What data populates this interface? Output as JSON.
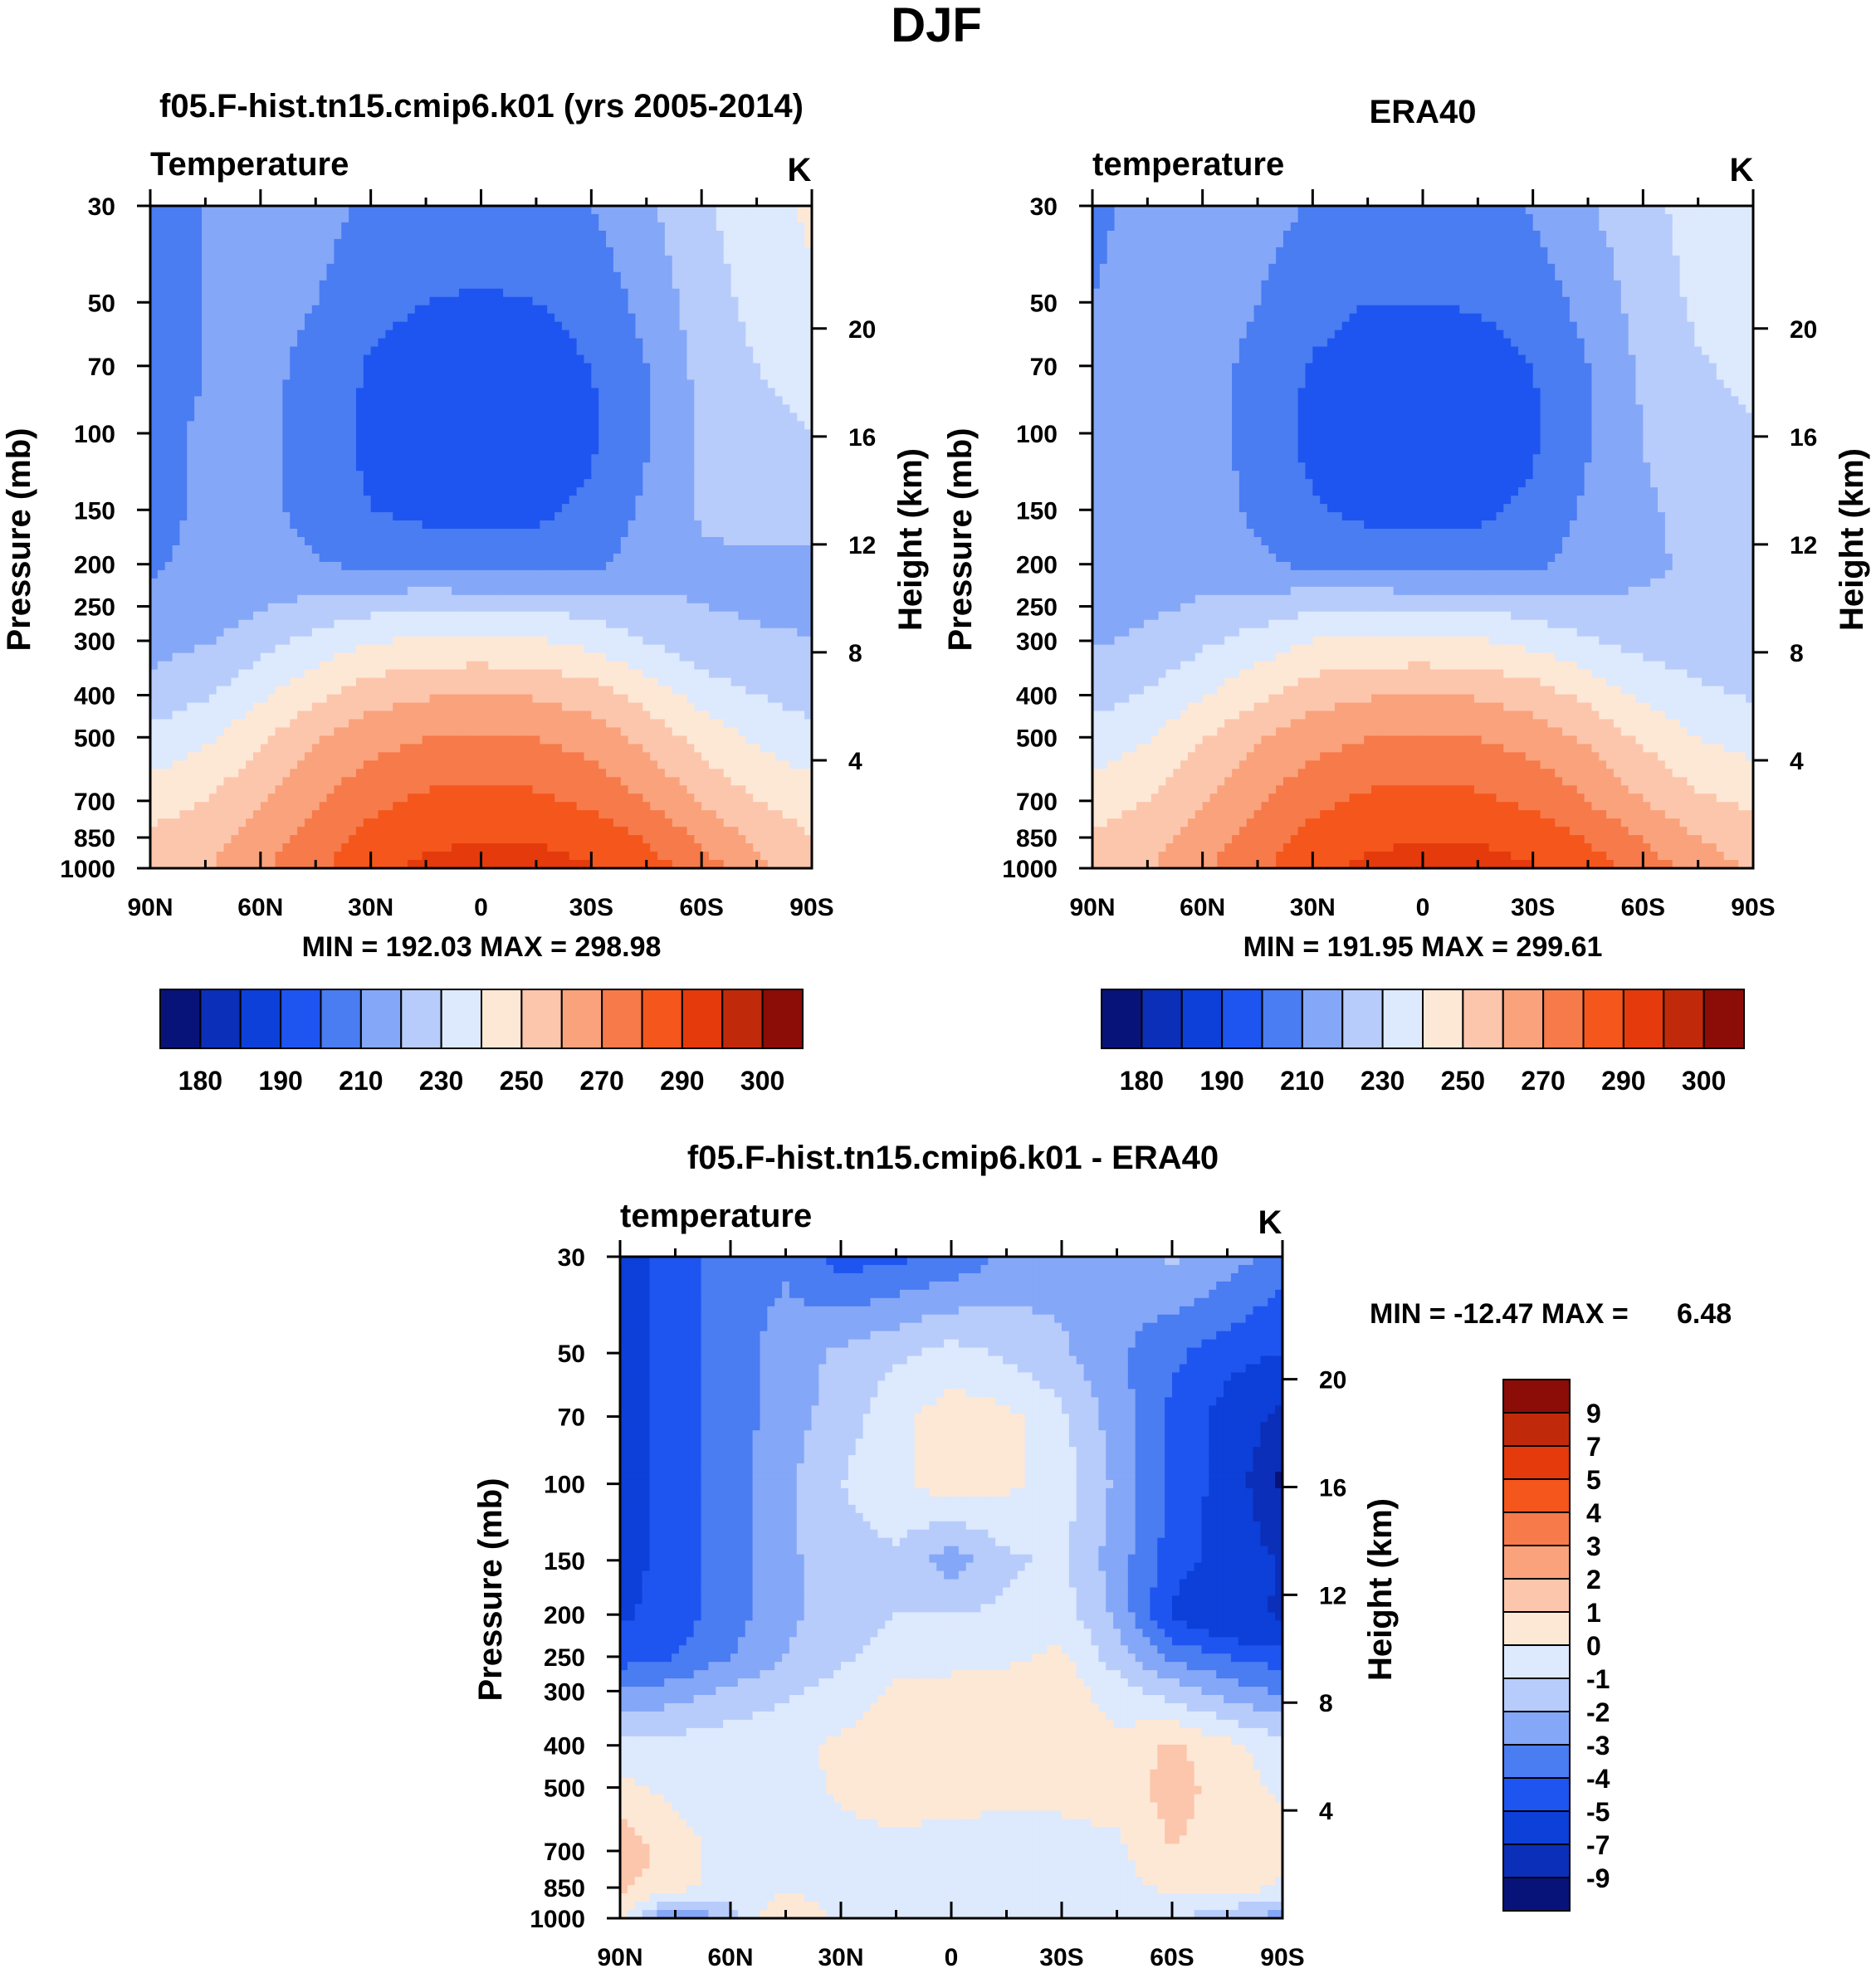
{
  "page": {
    "title": "DJF"
  },
  "colors": {
    "abs_fills": [
      "#08137a",
      "#0b2fb8",
      "#0d3fd9",
      "#1e55f0",
      "#4a7cf2",
      "#85a7f7",
      "#b7ccfb",
      "#dde9fd",
      "#fde8d6",
      "#fcc6ac",
      "#f9a27c",
      "#f67a4a",
      "#f4561c",
      "#e43a0c",
      "#c02a0a",
      "#8c0c08"
    ],
    "diff_fills": [
      "#08137a",
      "#0b2fb8",
      "#0d3fd9",
      "#1e55f0",
      "#4a7cf2",
      "#85a7f7",
      "#b7ccfb",
      "#dde9fd",
      "#fde8d6",
      "#fcc6ac",
      "#f9a27c",
      "#f67a4a",
      "#f4561c",
      "#e43a0c",
      "#c02a0a",
      "#8c0c08"
    ]
  },
  "chart_data": [
    {
      "id": "model",
      "type": "heatmap",
      "title": "f05.F-hist.tn15.cmip6.k01 (yrs 2005-2014)",
      "left_label": "Temperature",
      "unit": "K",
      "ylabel": "Pressure (mb)",
      "ylabel_right": "Height (km)",
      "x_ticks": [
        "90N",
        "60N",
        "30N",
        "0",
        "30S",
        "60S",
        "90S"
      ],
      "y_ticks": [
        "30",
        "50",
        "70",
        "100",
        "150",
        "200",
        "250",
        "300",
        "400",
        "500",
        "700",
        "850",
        "1000"
      ],
      "right_ticks": [
        "20",
        "16",
        "12",
        "8",
        "4"
      ],
      "stats": "MIN = 192.03  MAX = 298.98",
      "colorbar_labels": [
        "180",
        "190",
        "210",
        "230",
        "250",
        "270",
        "290",
        "300"
      ],
      "levels": [
        180,
        185,
        190,
        200,
        210,
        220,
        230,
        240,
        250,
        260,
        270,
        280,
        290,
        295,
        300
      ],
      "grid": {
        "lat": [
          90,
          75,
          60,
          45,
          30,
          15,
          0,
          -15,
          -30,
          -45,
          -60,
          -75,
          -90
        ],
        "lev": [
          30,
          50,
          70,
          100,
          150,
          200,
          250,
          300,
          400,
          500,
          700,
          850,
          1000
        ],
        "T": [
          [
            202,
            210,
            215,
            214,
            208,
            205,
            205,
            206,
            210,
            218,
            228,
            236,
            242
          ],
          [
            204,
            210,
            214,
            210,
            203,
            200,
            199,
            200,
            204,
            213,
            225,
            233,
            238
          ],
          [
            206,
            210,
            213,
            207,
            199,
            195,
            194,
            195,
            200,
            210,
            223,
            230,
            234
          ],
          [
            208,
            211,
            212,
            206,
            197,
            194,
            193,
            194,
            198,
            209,
            221,
            227,
            230
          ],
          [
            208,
            211,
            212,
            207,
            200,
            198,
            197,
            198,
            202,
            212,
            221,
            222,
            222
          ],
          [
            209,
            212,
            214,
            211,
            207,
            205,
            204,
            205,
            208,
            214,
            219,
            219,
            219
          ],
          [
            212,
            215,
            219,
            223,
            227,
            229,
            229,
            228,
            226,
            222,
            220,
            219,
            219
          ],
          [
            216,
            219,
            226,
            233,
            239,
            242,
            242,
            241,
            237,
            230,
            223,
            221,
            220
          ],
          [
            224,
            229,
            238,
            248,
            256,
            259,
            260,
            259,
            255,
            246,
            236,
            230,
            226
          ],
          [
            233,
            238,
            248,
            259,
            266,
            270,
            271,
            270,
            266,
            257,
            246,
            238,
            233
          ],
          [
            245,
            250,
            259,
            269,
            277,
            282,
            283,
            282,
            278,
            270,
            259,
            250,
            245
          ],
          [
            252,
            256,
            265,
            275,
            283,
            288,
            289,
            289,
            286,
            279,
            268,
            258,
            250
          ],
          [
            255,
            259,
            268,
            278,
            287,
            292,
            294,
            294,
            291,
            285,
            275,
            263,
            253
          ]
        ]
      }
    },
    {
      "id": "obs",
      "type": "heatmap",
      "title": "ERA40",
      "left_label": "temperature",
      "unit": "K",
      "ylabel": "Pressure (mb)",
      "ylabel_right": "Height (km)",
      "x_ticks": [
        "90N",
        "60N",
        "30N",
        "0",
        "30S",
        "60S",
        "90S"
      ],
      "y_ticks": [
        "30",
        "50",
        "70",
        "100",
        "150",
        "200",
        "250",
        "300",
        "400",
        "500",
        "700",
        "850",
        "1000"
      ],
      "right_ticks": [
        "20",
        "16",
        "12",
        "8",
        "4"
      ],
      "stats": "MIN = 191.95  MAX = 299.61",
      "colorbar_labels": [
        "180",
        "190",
        "210",
        "230",
        "250",
        "270",
        "290",
        "300"
      ],
      "levels": [
        180,
        185,
        190,
        200,
        210,
        220,
        230,
        240,
        250,
        260,
        270,
        280,
        290,
        295,
        300
      ],
      "grid": {
        "lat": [
          90,
          75,
          60,
          45,
          30,
          15,
          0,
          -15,
          -30,
          -45,
          -60,
          -75,
          -90
        ],
        "lev": [
          30,
          50,
          70,
          100,
          150,
          200,
          250,
          300,
          400,
          500,
          700,
          850,
          1000
        ],
        "T": [
          [
            208,
            213,
            217,
            214,
            209,
            206,
            206,
            207,
            211,
            219,
            227,
            234,
            238
          ],
          [
            210,
            213,
            215,
            210,
            204,
            200,
            200,
            201,
            205,
            213,
            224,
            232,
            236
          ],
          [
            211,
            213,
            214,
            207,
            199,
            195,
            194,
            195,
            200,
            210,
            222,
            229,
            233
          ],
          [
            212,
            214,
            214,
            206,
            197,
            194,
            193,
            194,
            198,
            209,
            220,
            226,
            229
          ],
          [
            213,
            215,
            215,
            208,
            201,
            198,
            197,
            198,
            202,
            212,
            219,
            222,
            223
          ],
          [
            214,
            216,
            217,
            212,
            207,
            205,
            204,
            205,
            208,
            214,
            219,
            221,
            221
          ],
          [
            216,
            218,
            221,
            224,
            228,
            229,
            229,
            228,
            226,
            222,
            221,
            221,
            221
          ],
          [
            219,
            222,
            228,
            234,
            240,
            242,
            242,
            241,
            237,
            231,
            226,
            224,
            223
          ],
          [
            226,
            231,
            239,
            248,
            256,
            259,
            260,
            259,
            255,
            247,
            238,
            232,
            229
          ],
          [
            234,
            239,
            249,
            259,
            266,
            270,
            271,
            270,
            266,
            258,
            248,
            240,
            236
          ],
          [
            245,
            250,
            259,
            269,
            277,
            282,
            283,
            282,
            278,
            270,
            260,
            252,
            248
          ],
          [
            251,
            256,
            265,
            275,
            283,
            288,
            289,
            289,
            286,
            279,
            269,
            260,
            254
          ],
          [
            254,
            259,
            268,
            278,
            287,
            292,
            294,
            294,
            291,
            285,
            276,
            266,
            258
          ]
        ]
      }
    },
    {
      "id": "diff",
      "type": "heatmap",
      "title": "f05.F-hist.tn15.cmip6.k01 - ERA40",
      "left_label": "temperature",
      "unit": "K",
      "ylabel": "Pressure (mb)",
      "ylabel_right": "Height (km)",
      "x_ticks": [
        "90N",
        "60N",
        "30N",
        "0",
        "30S",
        "60S",
        "90S"
      ],
      "y_ticks": [
        "30",
        "50",
        "70",
        "100",
        "150",
        "200",
        "250",
        "300",
        "400",
        "500",
        "700",
        "850",
        "1000"
      ],
      "right_ticks": [
        "20",
        "16",
        "12",
        "8",
        "4"
      ],
      "stats_label": "MIN = -12.47  MAX =",
      "stats_value": "6.48",
      "colorbar_labels": [
        "9",
        "7",
        "5",
        "4",
        "3",
        "2",
        "1",
        "0",
        "-1",
        "-2",
        "-3",
        "-4",
        "-5",
        "-7",
        "-9"
      ],
      "levels": [
        -9,
        -7,
        -5,
        -4,
        -3,
        -2,
        -1,
        0,
        1,
        2,
        3,
        4,
        5,
        7,
        9
      ],
      "grid": {
        "lat": [
          90,
          75,
          60,
          45,
          30,
          15,
          0,
          -15,
          -30,
          -45,
          -60,
          -75,
          -90
        ],
        "lev": [
          30,
          50,
          70,
          100,
          150,
          200,
          250,
          300,
          400,
          500,
          700,
          850,
          1000
        ],
        "T": [
          [
            -5.5,
            -4.5,
            -3.5,
            -3.2,
            -4.5,
            -4.2,
            -3.8,
            -2.8,
            -2.5,
            -2.5,
            -1.8,
            -2.5,
            -3.5
          ],
          [
            -5.5,
            -4.5,
            -3.5,
            -2.5,
            -1.8,
            -1.2,
            -0.6,
            -1.2,
            -1.8,
            -2.8,
            -3.8,
            -4.5,
            -5
          ],
          [
            -5.5,
            -4.5,
            -3.5,
            -2.5,
            -1.5,
            -0.3,
            0.5,
            0.3,
            -0.8,
            -2.5,
            -4.2,
            -5.5,
            -7.5
          ],
          [
            -5.5,
            -4.5,
            -3.5,
            -2.2,
            -1.0,
            -0.2,
            0.5,
            0.2,
            -0.5,
            -2.2,
            -4.2,
            -5.5,
            -9.5
          ],
          [
            -5.5,
            -4.5,
            -3.5,
            -2.2,
            -1.5,
            -1.2,
            -2.5,
            -1.2,
            -0.8,
            -2.5,
            -4.5,
            -5.5,
            -7.2
          ],
          [
            -5.2,
            -4.5,
            -3.5,
            -2.2,
            -1.5,
            -1.0,
            -1.0,
            -0.8,
            -0.5,
            -2.2,
            -5.2,
            -6.5,
            -7.2
          ],
          [
            -4.5,
            -4,
            -3,
            -2,
            -1.2,
            -0.6,
            -0.3,
            -0.2,
            0.2,
            -1.5,
            -3.2,
            -4.0,
            -4.5
          ],
          [
            -3,
            -2.5,
            -1.8,
            -1.2,
            -0.6,
            0.2,
            0.3,
            0.4,
            0.6,
            -0.5,
            -1.5,
            -2.5,
            -3.2
          ],
          [
            -0.8,
            -0.6,
            -0.4,
            -0.3,
            0.2,
            0.6,
            0.8,
            0.7,
            0.5,
            0.2,
            1.2,
            0.3,
            -0.5
          ],
          [
            0.3,
            -0.3,
            -0.5,
            -0.5,
            0.2,
            0.5,
            0.4,
            0.3,
            0.3,
            0.4,
            1.5,
            0.5,
            -0.2
          ],
          [
            1.8,
            0.5,
            -0.5,
            -0.5,
            -0.4,
            -0.3,
            -0.4,
            -0.5,
            -0.4,
            -0.2,
            1.0,
            0.6,
            0.4
          ],
          [
            1.2,
            0.3,
            -0.3,
            -0.3,
            -0.5,
            -0.5,
            -0.5,
            -0.6,
            -0.6,
            -0.5,
            0.3,
            0.6,
            -0.2
          ],
          [
            0.5,
            -3.5,
            -1.5,
            1.2,
            -0.3,
            -0.4,
            -0.4,
            -0.5,
            -0.5,
            -0.8,
            -0.8,
            -1.8,
            -2.5
          ]
        ]
      }
    }
  ]
}
